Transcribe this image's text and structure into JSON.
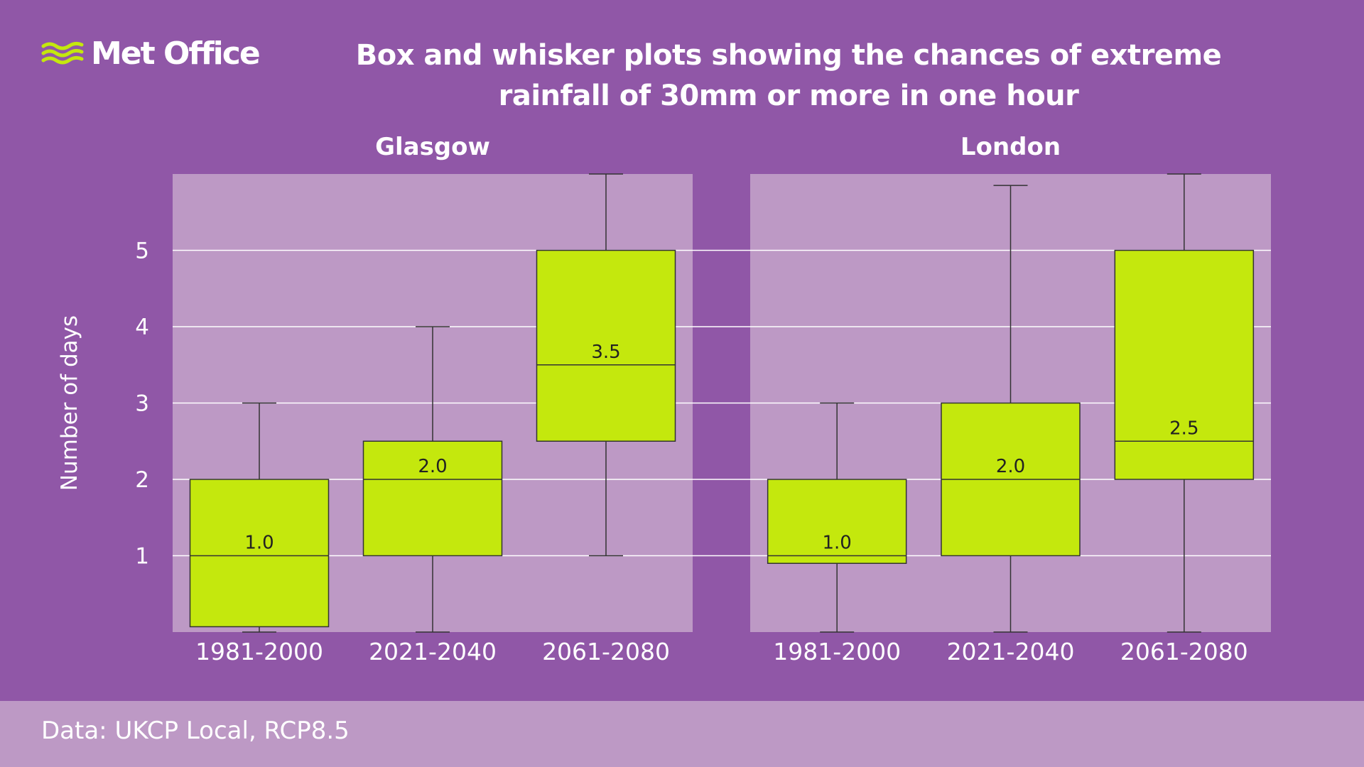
{
  "brand": {
    "name": "Met Office",
    "logo_color": "#c4e80d"
  },
  "title_lines": [
    "Box and whisker plots showing the chances of extreme",
    "rainfall of 30mm or more in one hour"
  ],
  "footer": {
    "source": "Data: UKCP Local, RCP8.5"
  },
  "colors": {
    "background": "#9057a7",
    "panel": "#bd99c5",
    "box_fill": "#c4e80d",
    "grid": "#ffffff",
    "text": "#ffffff"
  },
  "chart_data": {
    "type": "box",
    "ylabel": "Number of days",
    "ylim": [
      0,
      6
    ],
    "yticks": [
      1,
      2,
      3,
      4,
      5
    ],
    "grid": true,
    "categories": [
      "1981-2000",
      "2021-2040",
      "2061-2080"
    ],
    "panels": [
      {
        "title": "Glasgow",
        "boxes": [
          {
            "category": "1981-2000",
            "whisker_low": 0,
            "q1": 0.07,
            "median": 1.0,
            "q3": 2.0,
            "whisker_high": 3.0,
            "median_label": "1.0"
          },
          {
            "category": "2021-2040",
            "whisker_low": 0,
            "q1": 1.0,
            "median": 2.0,
            "q3": 2.5,
            "whisker_high": 4.0,
            "median_label": "2.0"
          },
          {
            "category": "2061-2080",
            "whisker_low": 1.0,
            "q1": 2.5,
            "median": 3.5,
            "q3": 5.0,
            "whisker_high": 6.0,
            "median_label": "3.5"
          }
        ]
      },
      {
        "title": "London",
        "boxes": [
          {
            "category": "1981-2000",
            "whisker_low": 0,
            "q1": 0.9,
            "median": 1.0,
            "q3": 2.0,
            "whisker_high": 3.0,
            "median_label": "1.0"
          },
          {
            "category": "2021-2040",
            "whisker_low": 0,
            "q1": 1.0,
            "median": 2.0,
            "q3": 3.0,
            "whisker_high": 5.85,
            "median_label": "2.0"
          },
          {
            "category": "2061-2080",
            "whisker_low": 0,
            "q1": 2.0,
            "median": 2.5,
            "q3": 5.0,
            "whisker_high": 6.0,
            "median_label": "2.5"
          }
        ]
      }
    ]
  }
}
